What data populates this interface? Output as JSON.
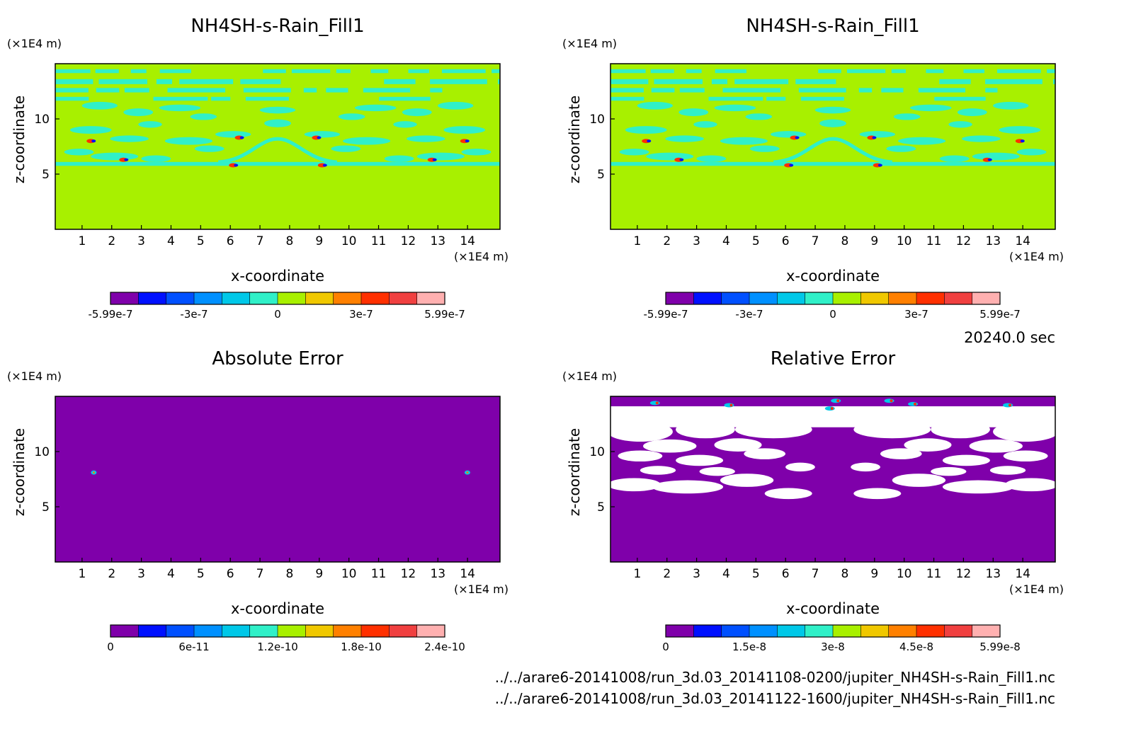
{
  "colors": {
    "levels": [
      "#7f00aa",
      "#1f00c8",
      "#0010ff",
      "#0050ff",
      "#0090ff",
      "#00c8e8",
      "#30f0c8",
      "#a8f000",
      "#f0c800",
      "#ff8000",
      "#ff3000",
      "#f04040",
      "#ffb0b0"
    ],
    "background_field": "#a8f000",
    "band_field": "#30f0c8",
    "error_background": "#7f00aa",
    "relative_gap": "#ffffff"
  },
  "time_label": "20240.0 sec",
  "footer": {
    "file1": "../../arare6-20141008/run_3d.03_20141108-0200/jupiter_NH4SH-s-Rain_Fill1.nc",
    "file2": "../../arare6-20141008/run_3d.03_20141122-1600/jupiter_NH4SH-s-Rain_Fill1.nc"
  },
  "chart_data": [
    {
      "type": "heatmap",
      "title": "NH4SH-s-Rain_Fill1",
      "xlabel": "x-coordinate",
      "ylabel": "z-coordinate",
      "x_unit": "(×1E4 m)",
      "y_unit": "(×1E4 m)",
      "xlim": [
        0,
        15
      ],
      "ylim": [
        0,
        15
      ],
      "xticks": [
        "1",
        "2",
        "3",
        "4",
        "5",
        "6",
        "7",
        "8",
        "9",
        "10",
        "11",
        "12",
        "13",
        "14"
      ],
      "yticks": [
        "5",
        "10"
      ],
      "colorbar": {
        "labels": [
          "-5.99e-7",
          "-3e-7",
          "0",
          "3e-7",
          "5.99e-7"
        ],
        "range": [
          -5.99e-07,
          5.99e-07
        ]
      },
      "field": "model"
    },
    {
      "type": "heatmap",
      "title": "NH4SH-s-Rain_Fill1",
      "xlabel": "x-coordinate",
      "ylabel": "z-coordinate",
      "x_unit": "(×1E4 m)",
      "y_unit": "(×1E4 m)",
      "xlim": [
        0,
        15
      ],
      "ylim": [
        0,
        15
      ],
      "xticks": [
        "1",
        "2",
        "3",
        "4",
        "5",
        "6",
        "7",
        "8",
        "9",
        "10",
        "11",
        "12",
        "13",
        "14"
      ],
      "yticks": [
        "5",
        "10"
      ],
      "colorbar": {
        "labels": [
          "-5.99e-7",
          "-3e-7",
          "0",
          "3e-7",
          "5.99e-7"
        ],
        "range": [
          -5.99e-07,
          5.99e-07
        ]
      },
      "field": "model"
    },
    {
      "type": "heatmap",
      "title": "Absolute Error",
      "xlabel": "x-coordinate",
      "ylabel": "z-coordinate",
      "x_unit": "(×1E4 m)",
      "y_unit": "(×1E4 m)",
      "xlim": [
        0,
        15
      ],
      "ylim": [
        0,
        15
      ],
      "xticks": [
        "1",
        "2",
        "3",
        "4",
        "5",
        "6",
        "7",
        "8",
        "9",
        "10",
        "11",
        "12",
        "13",
        "14"
      ],
      "yticks": [
        "5",
        "10"
      ],
      "colorbar": {
        "labels": [
          "0",
          "6e-11",
          "1.2e-10",
          "1.8e-10",
          "2.4e-10"
        ],
        "range": [
          0,
          2.4e-10
        ]
      },
      "field": "abs"
    },
    {
      "type": "heatmap",
      "title": "Relative Error",
      "xlabel": "x-coordinate",
      "ylabel": "z-coordinate",
      "x_unit": "(×1E4 m)",
      "y_unit": "(×1E4 m)",
      "xlim": [
        0,
        15
      ],
      "ylim": [
        0,
        15
      ],
      "xticks": [
        "1",
        "2",
        "3",
        "4",
        "5",
        "6",
        "7",
        "8",
        "9",
        "10",
        "11",
        "12",
        "13",
        "14"
      ],
      "yticks": [
        "5",
        "10"
      ],
      "colorbar": {
        "labels": [
          "0",
          "1.5e-8",
          "3e-8",
          "4.5e-8",
          "5.99e-8"
        ],
        "range": [
          0,
          5.99e-08
        ]
      },
      "field": "rel"
    }
  ]
}
